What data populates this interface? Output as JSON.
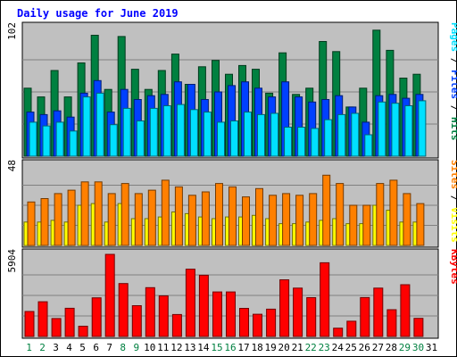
{
  "chart_data": {
    "type": "bar",
    "title": "Daily usage for June 2019",
    "categories": [
      "1",
      "2",
      "3",
      "4",
      "5",
      "6",
      "7",
      "8",
      "9",
      "10",
      "11",
      "12",
      "13",
      "14",
      "15",
      "16",
      "17",
      "18",
      "19",
      "20",
      "21",
      "22",
      "23",
      "24",
      "25",
      "26",
      "27",
      "28",
      "29",
      "30",
      "31"
    ],
    "weekend_days": [
      "1",
      "2",
      "8",
      "9",
      "15",
      "16",
      "22",
      "23",
      "29",
      "30"
    ],
    "colors": {
      "hits": "#008040",
      "files": "#0040ff",
      "pages": "#00e0ff",
      "visits": "#ffff00",
      "sites": "#ff8000",
      "kbytes": "#ff0000",
      "background": "#c0c0c0",
      "title": "#0000ff",
      "weekday_label": "#000000",
      "weekend_label": "#008040"
    },
    "panels": [
      {
        "id": "hits-files-pages",
        "ymax_label": "102",
        "ymax": 102,
        "series": [
          {
            "name": "Hits",
            "color": "#008040",
            "values": [
              54,
              47,
              68,
              47,
              74,
              96,
              53,
              95,
              69,
              53,
              68,
              81,
              57,
              71,
              76,
              65,
              72,
              69,
              50,
              82,
              49,
              54,
              91,
              83,
              39,
              54,
              100,
              84,
              62,
              65,
              0
            ]
          },
          {
            "name": "Files",
            "color": "#0040ff",
            "values": [
              35,
              33,
              36,
              31,
              50,
              60,
              35,
              53,
              45,
              48,
              49,
              59,
              57,
              45,
              51,
              56,
              59,
              54,
              47,
              59,
              47,
              43,
              45,
              48,
              39,
              27,
              48,
              49,
              46,
              49,
              0
            ]
          },
          {
            "name": "Pages",
            "color": "#00e0ff",
            "values": [
              27,
              24,
              27,
              20,
              47,
              50,
              25,
              38,
              28,
              38,
              40,
              41,
              37,
              35,
              27,
              28,
              35,
              33,
              34,
              23,
              23,
              22,
              29,
              33,
              34,
              17,
              43,
              42,
              40,
              44,
              0
            ]
          }
        ]
      },
      {
        "id": "visits-sites",
        "ymax_label": "48",
        "ymax": 48,
        "series": [
          {
            "name": "Visits",
            "color": "#ffff00",
            "values": [
              14,
              14,
              15,
              14,
              24,
              25,
              14,
              25,
              16,
              16,
              17,
              20,
              19,
              17,
              16,
              17,
              17,
              18,
              16,
              13,
              13,
              14,
              15,
              16,
              13,
              13,
              24,
              21,
              14,
              14,
              0
            ]
          },
          {
            "name": "Sites",
            "color": "#ff8000",
            "values": [
              26,
              28,
              31,
              33,
              38,
              38,
              31,
              37,
              31,
              33,
              39,
              35,
              30,
              32,
              37,
              35,
              29,
              34,
              30,
              31,
              30,
              31,
              42,
              37,
              24,
              24,
              37,
              39,
              31,
              25,
              0
            ]
          }
        ]
      },
      {
        "id": "kbytes",
        "ymax_label": "5904",
        "ymax": 5904,
        "series": [
          {
            "name": "KBytes",
            "color": "#ff0000",
            "values": [
              1800,
              2496,
              1292,
              2030,
              740,
              2781,
              5904,
              3808,
              2215,
              3513,
              2920,
              1576,
              4838,
              4405,
              3200,
              3200,
              2020,
              1600,
              1965,
              4072,
              3480,
              2789,
              5300,
              600,
              1100,
              2800,
              3480,
              1928,
              3720,
              1300,
              0
            ]
          }
        ]
      }
    ],
    "right_labels": [
      {
        "panel": "hits-files-pages",
        "parts": [
          {
            "text": "Pages",
            "color": "#00e0ff"
          },
          {
            "text": " / ",
            "color": "#000000"
          },
          {
            "text": "Files",
            "color": "#0040ff"
          },
          {
            "text": " / ",
            "color": "#000000"
          },
          {
            "text": "Hits",
            "color": "#008040"
          }
        ]
      },
      {
        "panel": "visits-sites",
        "parts": [
          {
            "text": "Sites",
            "color": "#ff8000"
          },
          {
            "text": " / ",
            "color": "#000000"
          },
          {
            "text": "Visits",
            "color": "#ffff00"
          }
        ]
      },
      {
        "panel": "kbytes",
        "parts": [
          {
            "text": "KBytes",
            "color": "#ff0000"
          }
        ]
      }
    ]
  }
}
